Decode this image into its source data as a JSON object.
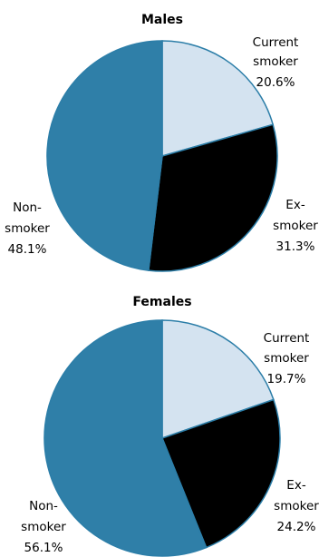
{
  "chart_data": [
    {
      "type": "pie",
      "title": "Males",
      "categories": [
        "Current smoker",
        "Ex-smoker",
        "Non-smoker"
      ],
      "values": [
        20.6,
        31.3,
        48.1
      ],
      "colors": [
        "#d4e3f0",
        "#000000",
        "#2f7fa8"
      ],
      "labels": [
        {
          "lines": [
            "Current",
            "smoker"
          ],
          "value": "20.6%"
        },
        {
          "lines": [
            "Ex-",
            "smoker"
          ],
          "value": "31.3%"
        },
        {
          "lines": [
            "Non-",
            "smoker"
          ],
          "value": "48.1%"
        }
      ],
      "legend": "none"
    },
    {
      "type": "pie",
      "title": "Females",
      "categories": [
        "Current smoker",
        "Ex-smoker",
        "Non-smoker"
      ],
      "values": [
        19.7,
        24.2,
        56.1
      ],
      "colors": [
        "#d4e3f0",
        "#000000",
        "#2f7fa8"
      ],
      "labels": [
        {
          "lines": [
            "Current",
            "smoker"
          ],
          "value": "19.7%"
        },
        {
          "lines": [
            "Ex-",
            "smoker"
          ],
          "value": "24.2%"
        },
        {
          "lines": [
            "Non-",
            "smoker"
          ],
          "value": "56.1%"
        }
      ],
      "legend": "none"
    }
  ]
}
